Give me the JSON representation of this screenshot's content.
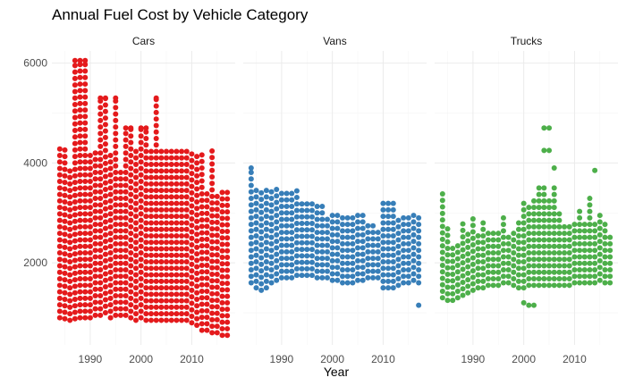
{
  "chart_data": {
    "type": "scatter",
    "title": "Annual Fuel Cost by Vehicle Category",
    "xlabel": "Year",
    "ylabel": "",
    "facets": [
      "Cars",
      "Vans",
      "Trucks"
    ],
    "xlim": [
      1984,
      2017
    ],
    "ylim": [
      500,
      6100
    ],
    "x_ticks": [
      1990,
      2000,
      2010
    ],
    "y_ticks": [
      2000,
      4000,
      6000
    ],
    "grid": true,
    "legend": "none",
    "colors": {
      "Cars": "#e41a1c",
      "Vans": "#377eb8",
      "Trucks": "#4daf4a"
    },
    "series": [
      {
        "facet": "Cars",
        "summary": [
          {
            "x": 1984,
            "min": 900,
            "max": 4350
          },
          {
            "x": 1985,
            "min": 880,
            "max": 4350
          },
          {
            "x": 1986,
            "min": 850,
            "max": 3900
          },
          {
            "x": 1987,
            "min": 880,
            "max": 6050
          },
          {
            "x": 1988,
            "min": 900,
            "max": 6050
          },
          {
            "x": 1989,
            "min": 900,
            "max": 6050
          },
          {
            "x": 1990,
            "min": 900,
            "max": 4250
          },
          {
            "x": 1991,
            "min": 950,
            "max": 4250
          },
          {
            "x": 1992,
            "min": 950,
            "max": 5300
          },
          {
            "x": 1993,
            "min": 1000,
            "max": 5300
          },
          {
            "x": 1994,
            "min": 900,
            "max": 4250
          },
          {
            "x": 1995,
            "min": 950,
            "max": 5300
          },
          {
            "x": 1996,
            "min": 950,
            "max": 3850
          },
          {
            "x": 1997,
            "min": 950,
            "max": 4700
          },
          {
            "x": 1998,
            "min": 900,
            "max": 4700
          },
          {
            "x": 1999,
            "min": 850,
            "max": 4250
          },
          {
            "x": 2000,
            "min": 900,
            "max": 4700
          },
          {
            "x": 2001,
            "min": 850,
            "max": 4700
          },
          {
            "x": 2002,
            "min": 850,
            "max": 4250
          },
          {
            "x": 2003,
            "min": 850,
            "max": 5300
          },
          {
            "x": 2004,
            "min": 850,
            "max": 4250
          },
          {
            "x": 2005,
            "min": 850,
            "max": 4250
          },
          {
            "x": 2006,
            "min": 850,
            "max": 4250
          },
          {
            "x": 2007,
            "min": 850,
            "max": 4250
          },
          {
            "x": 2008,
            "min": 850,
            "max": 4250
          },
          {
            "x": 2009,
            "min": 850,
            "max": 4250
          },
          {
            "x": 2010,
            "min": 800,
            "max": 4250
          },
          {
            "x": 2011,
            "min": 750,
            "max": 4250
          },
          {
            "x": 2012,
            "min": 650,
            "max": 4250
          },
          {
            "x": 2013,
            "min": 650,
            "max": 3450
          },
          {
            "x": 2014,
            "min": 600,
            "max": 4250
          },
          {
            "x": 2015,
            "min": 600,
            "max": 3450
          },
          {
            "x": 2016,
            "min": 550,
            "max": 3450
          },
          {
            "x": 2017,
            "min": 550,
            "max": 3450
          }
        ],
        "outliers": [
          {
            "x": 1987,
            "y": 6050
          },
          {
            "x": 1988,
            "y": 6050
          },
          {
            "x": 1989,
            "y": 6050
          },
          {
            "x": 1992,
            "y": 5300
          },
          {
            "x": 1993,
            "y": 5300
          },
          {
            "x": 1995,
            "y": 5300
          },
          {
            "x": 2003,
            "y": 5300
          },
          {
            "x": 1997,
            "y": 4700
          },
          {
            "x": 1998,
            "y": 4700
          },
          {
            "x": 2000,
            "y": 4700
          },
          {
            "x": 2001,
            "y": 4700
          }
        ]
      },
      {
        "facet": "Vans",
        "summary": [
          {
            "x": 1984,
            "min": 1600,
            "max": 3900
          },
          {
            "x": 1985,
            "min": 1500,
            "max": 3500
          },
          {
            "x": 1986,
            "min": 1450,
            "max": 3500
          },
          {
            "x": 1987,
            "min": 1500,
            "max": 3500
          },
          {
            "x": 1988,
            "min": 1600,
            "max": 3500
          },
          {
            "x": 1989,
            "min": 1650,
            "max": 3500
          },
          {
            "x": 1990,
            "min": 1700,
            "max": 3500
          },
          {
            "x": 1991,
            "min": 1700,
            "max": 3500
          },
          {
            "x": 1992,
            "min": 1700,
            "max": 3500
          },
          {
            "x": 1993,
            "min": 1750,
            "max": 3500
          },
          {
            "x": 1994,
            "min": 1750,
            "max": 3200
          },
          {
            "x": 1995,
            "min": 1750,
            "max": 3200
          },
          {
            "x": 1996,
            "min": 1750,
            "max": 3200
          },
          {
            "x": 1997,
            "min": 1700,
            "max": 3200
          },
          {
            "x": 1998,
            "min": 1700,
            "max": 3200
          },
          {
            "x": 1999,
            "min": 1700,
            "max": 2950
          },
          {
            "x": 2000,
            "min": 1650,
            "max": 2950
          },
          {
            "x": 2001,
            "min": 1650,
            "max": 2950
          },
          {
            "x": 2002,
            "min": 1600,
            "max": 2950
          },
          {
            "x": 2003,
            "min": 1600,
            "max": 2950
          },
          {
            "x": 2004,
            "min": 1600,
            "max": 2950
          },
          {
            "x": 2005,
            "min": 1650,
            "max": 2950
          },
          {
            "x": 2006,
            "min": 1650,
            "max": 2950
          },
          {
            "x": 2007,
            "min": 1700,
            "max": 2800
          },
          {
            "x": 2008,
            "min": 1700,
            "max": 2800
          },
          {
            "x": 2009,
            "min": 1700,
            "max": 2700
          },
          {
            "x": 2010,
            "min": 1500,
            "max": 3200
          },
          {
            "x": 2011,
            "min": 1500,
            "max": 3200
          },
          {
            "x": 2012,
            "min": 1500,
            "max": 3200
          },
          {
            "x": 2013,
            "min": 1550,
            "max": 2950
          },
          {
            "x": 2014,
            "min": 1600,
            "max": 2950
          },
          {
            "x": 2015,
            "min": 1600,
            "max": 2950
          },
          {
            "x": 2016,
            "min": 1650,
            "max": 2950
          },
          {
            "x": 2017,
            "min": 1600,
            "max": 2950
          }
        ],
        "outliers": [
          {
            "x": 1984,
            "y": 3900
          },
          {
            "x": 2017,
            "y": 1150
          }
        ]
      },
      {
        "facet": "Trucks",
        "summary": [
          {
            "x": 1984,
            "min": 1300,
            "max": 3500
          },
          {
            "x": 1985,
            "min": 1250,
            "max": 2800
          },
          {
            "x": 1986,
            "min": 1250,
            "max": 2400
          },
          {
            "x": 1987,
            "min": 1300,
            "max": 2400
          },
          {
            "x": 1988,
            "min": 1350,
            "max": 2800
          },
          {
            "x": 1989,
            "min": 1400,
            "max": 2600
          },
          {
            "x": 1990,
            "min": 1450,
            "max": 3000
          },
          {
            "x": 1991,
            "min": 1500,
            "max": 2600
          },
          {
            "x": 1992,
            "min": 1500,
            "max": 2800
          },
          {
            "x": 1993,
            "min": 1550,
            "max": 2600
          },
          {
            "x": 1994,
            "min": 1550,
            "max": 2600
          },
          {
            "x": 1995,
            "min": 1550,
            "max": 2600
          },
          {
            "x": 1996,
            "min": 1600,
            "max": 3000
          },
          {
            "x": 1997,
            "min": 1600,
            "max": 2600
          },
          {
            "x": 1998,
            "min": 1550,
            "max": 2700
          },
          {
            "x": 1999,
            "min": 1500,
            "max": 2800
          },
          {
            "x": 2000,
            "min": 1500,
            "max": 3200
          },
          {
            "x": 2001,
            "min": 1550,
            "max": 3200
          },
          {
            "x": 2002,
            "min": 1550,
            "max": 3300
          },
          {
            "x": 2003,
            "min": 1550,
            "max": 3500
          },
          {
            "x": 2004,
            "min": 1550,
            "max": 3500
          },
          {
            "x": 2005,
            "min": 1550,
            "max": 3300
          },
          {
            "x": 2006,
            "min": 1550,
            "max": 3500
          },
          {
            "x": 2007,
            "min": 1550,
            "max": 3000
          },
          {
            "x": 2008,
            "min": 1550,
            "max": 2800
          },
          {
            "x": 2009,
            "min": 1550,
            "max": 2800
          },
          {
            "x": 2010,
            "min": 1600,
            "max": 2800
          },
          {
            "x": 2011,
            "min": 1600,
            "max": 3100
          },
          {
            "x": 2012,
            "min": 1600,
            "max": 2800
          },
          {
            "x": 2013,
            "min": 1600,
            "max": 3300
          },
          {
            "x": 2014,
            "min": 1600,
            "max": 2800
          },
          {
            "x": 2015,
            "min": 1650,
            "max": 2950
          },
          {
            "x": 2016,
            "min": 1600,
            "max": 2800
          },
          {
            "x": 2017,
            "min": 1600,
            "max": 2600
          }
        ],
        "outliers": [
          {
            "x": 2004,
            "y": 4700
          },
          {
            "x": 2005,
            "y": 4700
          },
          {
            "x": 2004,
            "y": 4250
          },
          {
            "x": 2005,
            "y": 4250
          },
          {
            "x": 2006,
            "y": 3900
          },
          {
            "x": 2014,
            "y": 3850
          },
          {
            "x": 2000,
            "y": 1200
          },
          {
            "x": 2001,
            "y": 1150
          },
          {
            "x": 2002,
            "y": 1150
          }
        ]
      }
    ]
  }
}
